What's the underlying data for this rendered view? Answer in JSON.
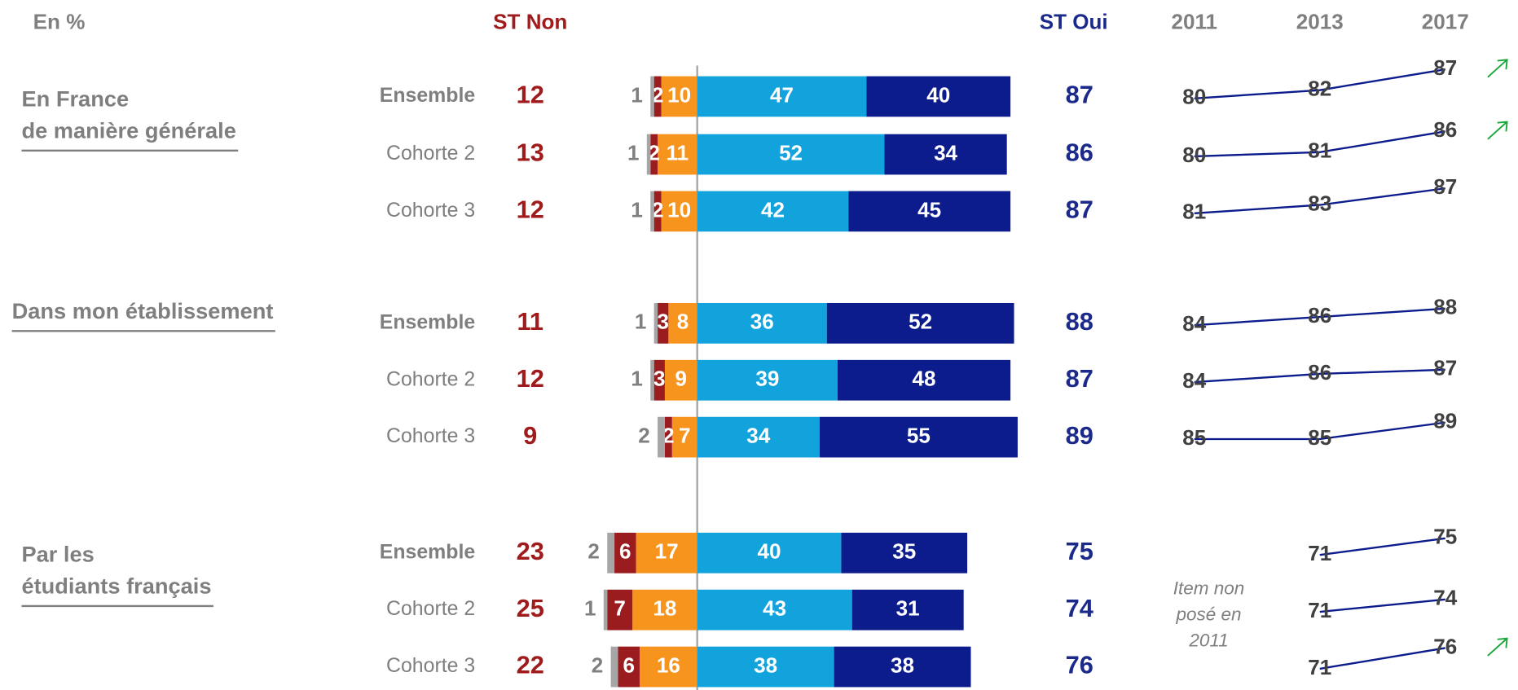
{
  "chart_data": {
    "type": "diverging-bar",
    "unit_label": "En %",
    "st_non_label": "ST Non",
    "st_oui_label": "ST Oui",
    "groups": [
      {
        "label": [
          "En France",
          "de manière générale"
        ]
      },
      {
        "label": [
          "Dans mon établissement"
        ]
      },
      {
        "label": [
          "Par les",
          "étudiants français"
        ]
      }
    ],
    "categories": [
      "Ensemble",
      "Cohorte 2",
      "Cohorte 3",
      "Ensemble",
      "Cohorte 2",
      "Cohorte 3",
      "Ensemble",
      "Cohorte 2",
      "Cohorte 3"
    ],
    "series": [
      {
        "color": "#a6a6a6",
        "side": "left",
        "values": [
          1,
          1,
          1,
          1,
          1,
          2,
          2,
          1,
          2
        ]
      },
      {
        "color": "#9b1c1f",
        "side": "left",
        "values": [
          2,
          2,
          2,
          3,
          3,
          2,
          6,
          7,
          6
        ]
      },
      {
        "color": "#f7941d",
        "side": "left",
        "values": [
          10,
          11,
          10,
          8,
          9,
          7,
          17,
          18,
          16
        ]
      },
      {
        "color": "#12a3dd",
        "side": "right",
        "values": [
          47,
          52,
          42,
          36,
          39,
          34,
          40,
          43,
          38
        ]
      },
      {
        "color": "#0c1c8c",
        "side": "right",
        "values": [
          40,
          34,
          45,
          52,
          48,
          55,
          35,
          31,
          38
        ]
      }
    ],
    "st_non": {
      "color": "#a01c1c",
      "values": [
        12,
        13,
        12,
        11,
        12,
        9,
        23,
        25,
        22
      ]
    },
    "st_oui": {
      "color": "#1b2a8a",
      "values": [
        87,
        86,
        87,
        88,
        87,
        89,
        75,
        74,
        76
      ]
    },
    "trend_years": [
      2011,
      2013,
      2017
    ],
    "trends": [
      {
        "values": [
          80,
          82,
          87
        ],
        "up": true
      },
      {
        "values": [
          80,
          81,
          86
        ],
        "up": true
      },
      {
        "values": [
          81,
          83,
          87
        ],
        "up": false
      },
      {
        "values": [
          84,
          86,
          88
        ],
        "up": false
      },
      {
        "values": [
          84,
          86,
          87
        ],
        "up": false
      },
      {
        "values": [
          85,
          85,
          89
        ],
        "up": false
      },
      {
        "values": [
          null,
          71,
          75
        ],
        "up": false
      },
      {
        "values": [
          null,
          71,
          74
        ],
        "up": false
      },
      {
        "values": [
          null,
          71,
          76
        ],
        "up": true
      }
    ],
    "trend_color": "#0c1c8c",
    "up_color": "#1aa63a",
    "note": [
      "Item non",
      "posé en",
      "2011"
    ]
  }
}
